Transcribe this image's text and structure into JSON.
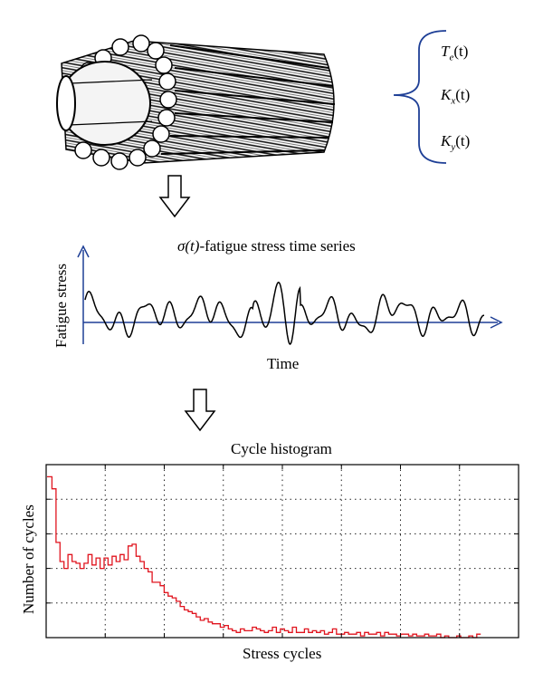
{
  "cable": {
    "signals": [
      {
        "symbol": "T",
        "subscript": "e",
        "arg": "(t)"
      },
      {
        "symbol": "K",
        "subscript": "x",
        "arg": "(t)"
      },
      {
        "symbol": "K",
        "subscript": "y",
        "arg": "(t)"
      }
    ]
  },
  "time_series": {
    "title_symbol": "σ(t)",
    "title_rest": "-fatigue stress time series",
    "ylabel": "Fatigue stress",
    "xlabel": "Time"
  },
  "chart_data": {
    "type": "bar",
    "title": "Cycle histogram",
    "xlabel": "Stress cycles",
    "ylabel": "Number of cycles",
    "grid": true,
    "line_color": "#e0141e",
    "ylim": [
      0,
      1
    ],
    "values": [
      0.93,
      0.86,
      0.55,
      0.44,
      0.4,
      0.48,
      0.44,
      0.43,
      0.4,
      0.43,
      0.48,
      0.42,
      0.46,
      0.4,
      0.46,
      0.42,
      0.47,
      0.44,
      0.48,
      0.45,
      0.53,
      0.54,
      0.47,
      0.44,
      0.4,
      0.38,
      0.32,
      0.32,
      0.3,
      0.26,
      0.24,
      0.23,
      0.21,
      0.18,
      0.16,
      0.15,
      0.14,
      0.12,
      0.1,
      0.11,
      0.09,
      0.08,
      0.08,
      0.06,
      0.07,
      0.05,
      0.04,
      0.03,
      0.05,
      0.04,
      0.04,
      0.06,
      0.05,
      0.04,
      0.03,
      0.04,
      0.06,
      0.03,
      0.05,
      0.04,
      0.03,
      0.06,
      0.03,
      0.03,
      0.05,
      0.03,
      0.04,
      0.03,
      0.04,
      0.02,
      0.03,
      0.05,
      0.02,
      0.02,
      0.03,
      0.02,
      0.02,
      0.03,
      0.01,
      0.03,
      0.02,
      0.02,
      0.03,
      0.01,
      0.03,
      0.02,
      0.02,
      0.01,
      0.02,
      0.02,
      0.01,
      0.02,
      0.01,
      0.01,
      0.02,
      0.01,
      0.01,
      0.02,
      0.0,
      0.01,
      0.0,
      0.0,
      0.01,
      0.0,
      0.0,
      0.01,
      0.0,
      0.02
    ]
  }
}
